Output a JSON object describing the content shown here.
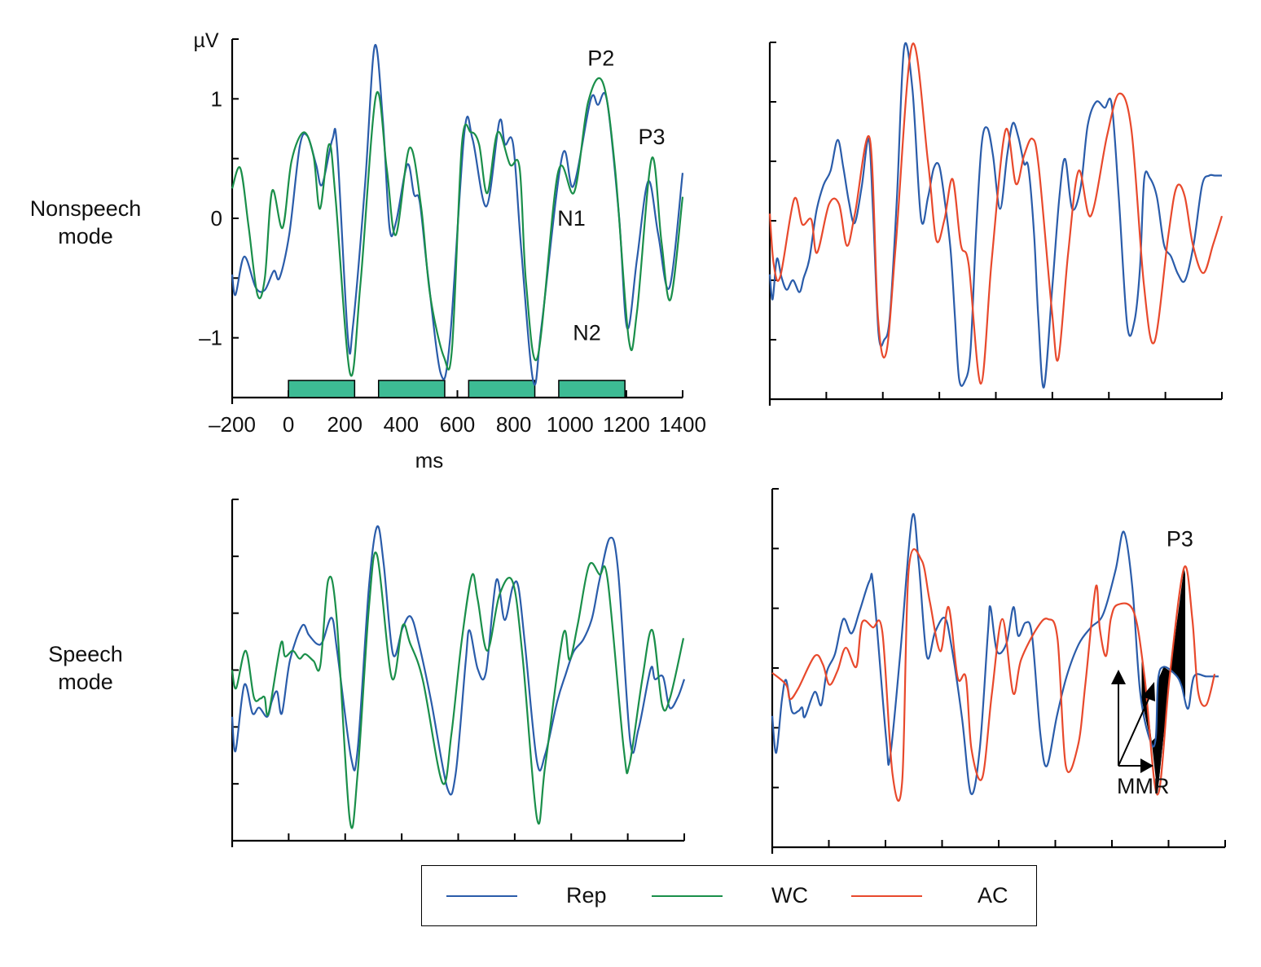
{
  "figure": {
    "row_labels": [
      "Nonspeech\nmode",
      "Speech\nmode"
    ],
    "legend": [
      {
        "label": "Rep",
        "color": "#2a5caa"
      },
      {
        "label": "WC",
        "color": "#1a8f4a"
      },
      {
        "label": "AC",
        "color": "#e8492c"
      }
    ]
  },
  "chart_data": [
    {
      "type": "line",
      "panel": "nonspeech-rep-wc",
      "row": "Nonspeech mode",
      "ylabel": "µV",
      "xlabel": "ms",
      "xlim": [
        -200,
        1400
      ],
      "ylim": [
        -1.5,
        1.5
      ],
      "xticks": [
        -200,
        0,
        200,
        400,
        600,
        800,
        1000,
        1200,
        1400
      ],
      "xtick_labels": [
        "–200",
        "0",
        "200",
        "400",
        "600",
        "800",
        "1000",
        "1200",
        "1400"
      ],
      "yticks": [
        -1,
        -0.5,
        0,
        0.5,
        1,
        1.5
      ],
      "ytick_labels": [
        "–1",
        "",
        "0",
        "",
        "1",
        ""
      ],
      "stimulus_bars": [
        [
          0,
          235
        ],
        [
          320,
          555
        ],
        [
          640,
          875
        ],
        [
          960,
          1195
        ]
      ],
      "stimulus_color": "#3dbb94",
      "annotations": [
        {
          "text": "P2",
          "x": 1110,
          "y": 1.28
        },
        {
          "text": "P3",
          "x": 1290,
          "y": 0.62
        },
        {
          "text": "N1",
          "x": 1005,
          "y": -0.06
        },
        {
          "text": "N2",
          "x": 1060,
          "y": -1.02
        }
      ],
      "series": [
        {
          "name": "Rep",
          "color": "#2a5caa",
          "x": [
            -200,
            -188,
            -157,
            -116,
            -84,
            -52,
            -32,
            3,
            40,
            67,
            98,
            119,
            156,
            173,
            211,
            229,
            272,
            306,
            335,
            359,
            382,
            422,
            446,
            466,
            495,
            541,
            573,
            625,
            654,
            703,
            749,
            769,
            798,
            827,
            870,
            899,
            972,
            1012,
            1073,
            1099,
            1131,
            1174,
            1203,
            1238,
            1278,
            1313,
            1353,
            1400
          ],
          "y": [
            -0.47,
            -0.64,
            -0.32,
            -0.58,
            -0.6,
            -0.44,
            -0.5,
            -0.13,
            0.6,
            0.69,
            0.45,
            0.28,
            0.66,
            0.59,
            -1.0,
            -0.9,
            0.28,
            1.44,
            0.83,
            -0.08,
            -0.03,
            0.45,
            0.2,
            0.14,
            -0.47,
            -1.3,
            -1.03,
            0.72,
            0.66,
            0.1,
            0.81,
            0.62,
            0.62,
            -0.27,
            -1.37,
            -0.9,
            0.52,
            0.27,
            0.99,
            0.95,
            0.99,
            0.02,
            -0.92,
            -0.34,
            0.31,
            -0.13,
            -0.58,
            0.38
          ]
        },
        {
          "name": "WC",
          "color": "#1a8f4a",
          "x": [
            -200,
            -171,
            -142,
            -110,
            -84,
            -58,
            -21,
            11,
            54,
            89,
            112,
            144,
            167,
            219,
            256,
            311,
            349,
            381,
            430,
            471,
            503,
            552,
            581,
            616,
            648,
            677,
            706,
            743,
            787,
            821,
            844,
            885,
            957,
            1015,
            1064,
            1116,
            1160,
            1209,
            1238,
            1290,
            1325,
            1357,
            1400
          ],
          "y": [
            0.25,
            0.42,
            -0.06,
            -0.64,
            -0.5,
            0.23,
            -0.08,
            0.48,
            0.72,
            0.52,
            0.08,
            0.62,
            0.18,
            -1.3,
            -0.54,
            1.03,
            0.42,
            -0.14,
            0.59,
            0.1,
            -0.64,
            -1.16,
            -1.09,
            0.62,
            0.72,
            0.62,
            0.21,
            0.72,
            0.45,
            0.42,
            -0.54,
            -1.16,
            0.38,
            0.22,
            0.97,
            1.14,
            0.42,
            -1.02,
            -0.78,
            0.5,
            -0.2,
            -0.68,
            0.18
          ]
        }
      ]
    },
    {
      "type": "line",
      "panel": "nonspeech-rep-ac",
      "row": "Nonspeech mode",
      "xlim": [
        -200,
        1400
      ],
      "ylim": [
        -1.5,
        1.5
      ],
      "xticks": [
        -200,
        0,
        200,
        400,
        600,
        800,
        1000,
        1200,
        1400
      ],
      "yticks": [
        -1,
        -0.5,
        0,
        0.5,
        1,
        1.5
      ],
      "series": [
        {
          "name": "Rep",
          "color": "#2a5caa",
          "x": [
            -200,
            -190,
            -175,
            -158,
            -140,
            -118,
            -95,
            -80,
            -60,
            -35,
            -10,
            15,
            40,
            60,
            80,
            100,
            125,
            150,
            165,
            185,
            205,
            225,
            250,
            275,
            305,
            335,
            360,
            380,
            400,
            420,
            440,
            455,
            470,
            490,
            510,
            530,
            550,
            570,
            590,
            615,
            640,
            660,
            680,
            700,
            715,
            735,
            750,
            770,
            800,
            825,
            845,
            870,
            900,
            925,
            955,
            985,
            1010,
            1035,
            1065,
            1090,
            1110,
            1125,
            1145,
            1170,
            1195,
            1220,
            1245,
            1270,
            1300,
            1330,
            1355,
            1375,
            1400
          ],
          "y": [
            -0.45,
            -0.66,
            -0.32,
            -0.48,
            -0.58,
            -0.5,
            -0.6,
            -0.48,
            -0.32,
            0.08,
            0.3,
            0.42,
            0.68,
            0.45,
            0.16,
            -0.02,
            0.28,
            0.69,
            0.1,
            -0.95,
            -1.0,
            -0.8,
            0.2,
            1.45,
            1.1,
            0.02,
            0.2,
            0.44,
            0.46,
            0.15,
            -0.25,
            -0.8,
            -1.33,
            -1.35,
            -1.1,
            -0.1,
            0.65,
            0.78,
            0.55,
            0.1,
            0.55,
            0.82,
            0.7,
            0.48,
            0.45,
            -0.1,
            -0.8,
            -1.4,
            -0.55,
            0.2,
            0.52,
            0.1,
            0.28,
            0.8,
            1.0,
            0.95,
            0.98,
            0.2,
            -0.88,
            -0.85,
            -0.4,
            0.35,
            0.36,
            0.2,
            -0.2,
            -0.3,
            -0.45,
            -0.5,
            -0.2,
            0.3,
            0.38,
            0.38,
            0.38
          ]
        },
        {
          "name": "AC",
          "color": "#e8492c",
          "x": [
            -200,
            -186,
            -163,
            -114,
            -85,
            -53,
            -33,
            10,
            45,
            73,
            102,
            154,
            183,
            212,
            246,
            304,
            360,
            389,
            418,
            447,
            476,
            504,
            547,
            585,
            634,
            671,
            700,
            729,
            752,
            798,
            821,
            856,
            893,
            936,
            994,
            1037,
            1080,
            1124,
            1161,
            1210,
            1239,
            1268,
            1297,
            1334,
            1369,
            1400
          ],
          "y": [
            0.06,
            -0.37,
            -0.47,
            0.18,
            -0.03,
            0.01,
            -0.27,
            0.14,
            0.14,
            -0.21,
            0.07,
            0.69,
            -0.82,
            -1.11,
            -0.2,
            1.48,
            0.49,
            -0.16,
            0.01,
            0.35,
            -0.2,
            -0.37,
            -1.37,
            -0.34,
            0.76,
            0.31,
            0.55,
            0.69,
            0.45,
            -0.75,
            -1.16,
            -0.27,
            0.42,
            0.04,
            0.72,
            1.07,
            0.76,
            -0.54,
            -1.02,
            -0.13,
            0.28,
            0.21,
            -0.2,
            -0.44,
            -0.2,
            0.04
          ]
        }
      ]
    },
    {
      "type": "line",
      "panel": "speech-rep-wc",
      "row": "Speech mode",
      "xlim": [
        -200,
        1400
      ],
      "ylim": [
        -1.5,
        1.5
      ],
      "xticks": [
        -200,
        0,
        200,
        400,
        600,
        800,
        1000,
        1200,
        1400
      ],
      "yticks": [
        -1,
        -0.5,
        0,
        0.5,
        1,
        1.5
      ],
      "series": [
        {
          "name": "Rep",
          "color": "#2a5caa",
          "x": [
            -200,
            -188,
            -157,
            -128,
            -105,
            -76,
            -59,
            -41,
            -24,
            5,
            48,
            71,
            100,
            120,
            152,
            172,
            221,
            244,
            284,
            313,
            336,
            369,
            403,
            432,
            461,
            504,
            562,
            591,
            626,
            640,
            669,
            698,
            735,
            764,
            793,
            813,
            836,
            879,
            908,
            951,
            980,
            1008,
            1043,
            1074,
            1100,
            1137,
            1166,
            1209,
            1238,
            1281,
            1296,
            1325,
            1348,
            1377,
            1400
          ],
          "y": [
            -0.41,
            -0.71,
            -0.13,
            -0.38,
            -0.33,
            -0.41,
            -0.27,
            -0.19,
            -0.38,
            0.09,
            0.39,
            0.31,
            0.23,
            0.25,
            0.46,
            0.16,
            -0.77,
            -0.7,
            0.73,
            1.26,
            0.94,
            0.14,
            0.37,
            0.47,
            0.23,
            -0.27,
            -1.04,
            -0.91,
            0.06,
            0.35,
            0.01,
            -0.02,
            0.79,
            0.44,
            0.73,
            0.73,
            0.23,
            -0.81,
            -0.74,
            -0.27,
            -0.04,
            0.16,
            0.27,
            0.46,
            0.79,
            1.16,
            0.87,
            -0.63,
            -0.52,
            0.01,
            -0.08,
            -0.06,
            -0.33,
            -0.24,
            -0.08
          ]
        },
        {
          "name": "WC",
          "color": "#1a8f4a",
          "x": [
            -200,
            -186,
            -152,
            -123,
            -100,
            -85,
            -71,
            -28,
            -13,
            15,
            38,
            59,
            88,
            112,
            140,
            169,
            216,
            244,
            284,
            313,
            365,
            403,
            429,
            475,
            544,
            576,
            611,
            648,
            669,
            703,
            746,
            792,
            827,
            879,
            908,
            971,
            994,
            1023,
            1063,
            1100,
            1129,
            1186,
            1206,
            1252,
            1287,
            1322,
            1350,
            1397
          ],
          "y": [
            0.0,
            -0.16,
            0.17,
            -0.24,
            -0.25,
            -0.24,
            -0.38,
            0.23,
            0.12,
            0.17,
            0.1,
            0.14,
            0.08,
            0.04,
            0.79,
            0.48,
            -1.31,
            -0.91,
            0.55,
            1.01,
            -0.07,
            0.39,
            0.24,
            -0.09,
            -0.99,
            -0.56,
            0.23,
            0.83,
            0.62,
            0.17,
            0.66,
            0.78,
            0.14,
            -1.31,
            -0.84,
            0.31,
            0.09,
            0.4,
            0.92,
            0.84,
            0.79,
            -0.7,
            -0.83,
            -0.07,
            0.35,
            -0.31,
            -0.24,
            0.28
          ]
        }
      ]
    },
    {
      "type": "line",
      "panel": "speech-rep-ac",
      "row": "Speech mode",
      "xlim": [
        -200,
        1400
      ],
      "ylim": [
        -1.5,
        1.5
      ],
      "xticks": [
        -200,
        0,
        200,
        400,
        600,
        800,
        1000,
        1200,
        1400
      ],
      "yticks": [
        -1,
        -0.5,
        0,
        0.5,
        1,
        1.5
      ],
      "annotations": [
        {
          "text": "P3",
          "x": 1240,
          "y": 1.02
        },
        {
          "text": "MMR",
          "x": 1110,
          "y": -1.05
        }
      ],
      "mmr_arrows": true,
      "filled_difference_regions": [
        [
          1105,
          1190
        ],
        [
          1165,
          1260
        ]
      ],
      "series": [
        {
          "name": "Rep",
          "color": "#2a5caa",
          "x": [
            -200,
            -186,
            -166,
            -151,
            -131,
            -108,
            -94,
            -85,
            -50,
            -27,
            -7,
            22,
            51,
            80,
            109,
            144,
            158,
            202,
            216,
            253,
            294,
            317,
            346,
            375,
            409,
            432,
            470,
            502,
            533,
            562,
            571,
            594,
            628,
            652,
            669,
            695,
            718,
            747,
            770,
            805,
            840,
            883,
            926,
            969,
            1013,
            1042,
            1072,
            1100,
            1137,
            1155,
            1163,
            1183,
            1226,
            1246,
            1269,
            1290,
            1333,
            1377
          ],
          "y": [
            -0.4,
            -0.71,
            -0.27,
            -0.1,
            -0.36,
            -0.36,
            -0.33,
            -0.41,
            -0.2,
            -0.31,
            -0.03,
            0.12,
            0.41,
            0.29,
            0.48,
            0.73,
            0.66,
            -0.58,
            -0.75,
            0.14,
            1.26,
            0.89,
            0.1,
            0.3,
            0.42,
            0.2,
            -0.41,
            -1.05,
            -0.68,
            0.3,
            0.51,
            0.14,
            0.21,
            0.51,
            0.27,
            0.38,
            0.27,
            -0.55,
            -0.82,
            -0.41,
            -0.07,
            0.2,
            0.34,
            0.45,
            0.82,
            1.14,
            0.68,
            -0.21,
            -0.62,
            -0.58,
            -0.1,
            0.01,
            -0.06,
            -0.15,
            -0.34,
            -0.07,
            -0.07,
            -0.07
          ]
        },
        {
          "name": "AC",
          "color": "#e8492c",
          "x": [
            -200,
            -151,
            -137,
            -108,
            -50,
            -21,
            2,
            31,
            60,
            97,
            117,
            155,
            189,
            225,
            259,
            282,
            328,
            357,
            394,
            423,
            455,
            484,
            504,
            542,
            576,
            613,
            651,
            679,
            737,
            774,
            808,
            837,
            880,
            906,
            943,
            957,
            979,
            996,
            1020,
            1077,
            1115,
            1161,
            1204,
            1255,
            1284,
            1304,
            1333,
            1363
          ],
          "y": [
            -0.04,
            -0.14,
            -0.26,
            -0.17,
            0.1,
            0.03,
            -0.14,
            -0.02,
            0.17,
            0.01,
            0.38,
            0.34,
            0.3,
            -0.89,
            -0.95,
            0.82,
            0.9,
            0.55,
            0.14,
            0.51,
            -0.08,
            -0.08,
            -0.68,
            -0.92,
            -0.21,
            0.41,
            -0.21,
            0.07,
            0.34,
            0.41,
            0.24,
            -0.82,
            -0.65,
            -0.14,
            0.68,
            0.33,
            0.1,
            0.41,
            0.53,
            0.47,
            -0.07,
            -1.06,
            -0.07,
            0.84,
            0.41,
            -0.19,
            -0.31,
            -0.05
          ]
        }
      ]
    }
  ]
}
